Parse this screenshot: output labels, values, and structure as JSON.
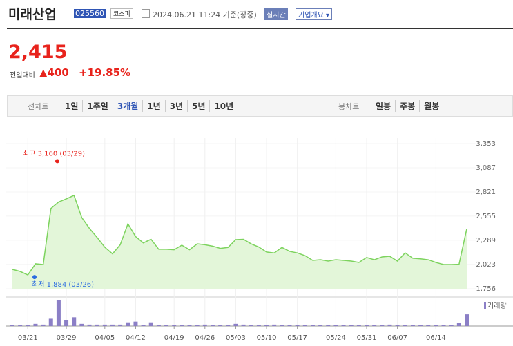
{
  "header": {
    "title": "미래산업",
    "code": "025560",
    "market": "코스피",
    "timestamp": "2024.06.21 11:24 기준(장중)",
    "realtime": "실시간",
    "company_info": "기업개요"
  },
  "quote": {
    "price": "2,415",
    "change_label": "전일대비",
    "change": "400",
    "change_rate": "+19.85%"
  },
  "tabs": {
    "line_label": "선차트",
    "line_periods": [
      "1일",
      "1주일",
      "3개월",
      "1년",
      "3년",
      "5년",
      "10년"
    ],
    "candle_label": "봉차트",
    "candle_periods": [
      "일봉",
      "주봉",
      "월봉"
    ]
  },
  "chart_data": {
    "type": "line",
    "color": "#7dd35e",
    "fill": "#e3f6d9",
    "volume_color": "#8b7fc6",
    "grid": true,
    "categories": [
      null,
      null,
      "03/21",
      null,
      null,
      null,
      null,
      "03/29",
      null,
      null,
      null,
      null,
      "04/05",
      null,
      null,
      null,
      "04/12",
      null,
      null,
      null,
      null,
      "04/19",
      null,
      null,
      null,
      "04/26",
      null,
      null,
      null,
      "05/03",
      null,
      null,
      null,
      "05/10",
      null,
      null,
      null,
      "05/17",
      null,
      null,
      null,
      null,
      "05/24",
      null,
      null,
      null,
      "05/31",
      null,
      null,
      null,
      "06/07",
      null,
      null,
      null,
      null,
      "06/14",
      null,
      null,
      null,
      null
    ],
    "values": [
      1969,
      1946,
      1908,
      2030,
      2022,
      2640,
      2710,
      2745,
      2783,
      2540,
      2420,
      2320,
      2212,
      2140,
      2240,
      2470,
      2330,
      2260,
      2300,
      2190,
      2190,
      2185,
      2235,
      2185,
      2250,
      2240,
      2225,
      2200,
      2210,
      2296,
      2300,
      2250,
      2215,
      2160,
      2150,
      2210,
      2167,
      2150,
      2120,
      2068,
      2075,
      2060,
      2075,
      2068,
      2060,
      2045,
      2100,
      2075,
      2106,
      2113,
      2060,
      2151,
      2091,
      2085,
      2075,
      2045,
      2022,
      2022,
      2025,
      2415
    ],
    "volume": [
      1,
      1,
      1,
      3,
      2,
      10,
      36,
      8,
      12,
      3,
      2,
      2,
      2,
      2,
      2,
      5,
      6,
      1,
      5,
      1,
      1,
      1,
      1,
      1,
      1,
      2,
      1,
      1,
      1,
      3,
      2,
      1,
      1,
      1,
      2,
      1,
      1,
      1,
      1,
      1,
      1,
      1,
      1,
      1,
      1,
      1,
      1,
      1,
      1,
      2,
      1,
      1,
      1,
      1,
      1,
      1,
      1,
      1,
      4,
      16
    ],
    "volume_label": "거래량",
    "ylim": [
      1756,
      3353
    ],
    "yticks": [
      {
        "value": 3353,
        "label": "3,353"
      },
      {
        "value": 3087,
        "label": "3,087"
      },
      {
        "value": 2821,
        "label": "2,821"
      },
      {
        "value": 2555,
        "label": "2,555"
      },
      {
        "value": 2289,
        "label": "2,289"
      },
      {
        "value": 2023,
        "label": "2,023"
      },
      {
        "value": 1756,
        "label": "1,756"
      }
    ],
    "high": {
      "text": "최고 3,160 (03/29)",
      "value": 3160,
      "color": "#e8231c"
    },
    "low": {
      "text": "최저 1,884 (03/26)",
      "value": 1884,
      "color": "#2a6be0"
    }
  }
}
